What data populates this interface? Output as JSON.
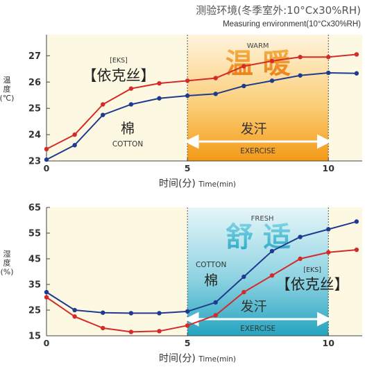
{
  "header": {
    "title": "测验环境(冬季室外:10°Cx30%RH)",
    "subtitle": "Measuring environment(10°Cx30%RH)"
  },
  "chart_data": [
    {
      "type": "line",
      "ylabel": "温度(℃)",
      "xlabel": "时间(分)",
      "xlabel_en": "Time(min)",
      "xlim": [
        0,
        11.2
      ],
      "ylim": [
        23,
        27.8
      ],
      "x_ticks": [
        "0",
        "5",
        "10"
      ],
      "y_ticks": [
        "23",
        "24",
        "25",
        "26",
        "27"
      ],
      "phase_marks": [
        5,
        10
      ],
      "phase_label_cn": "温 暖",
      "phase_label_en": "WARM",
      "exercise_cn": "发汗",
      "exercise_en": "EXERCISE",
      "series": [
        {
          "label_cn": "【依克丝】",
          "label_en": "[EKS]",
          "color": "#d42a2a",
          "x": [
            0,
            1,
            2,
            3,
            4,
            5,
            6,
            7,
            8,
            9,
            10,
            11
          ],
          "y": [
            23.45,
            24.0,
            25.15,
            25.75,
            25.95,
            26.05,
            26.15,
            26.6,
            26.8,
            26.95,
            26.95,
            27.05
          ]
        },
        {
          "label_cn": "棉",
          "label_en": "COTTON",
          "color": "#1f3b8f",
          "x": [
            0,
            1,
            2,
            3,
            4,
            5,
            6,
            7,
            8,
            9,
            10,
            11
          ],
          "y": [
            23.05,
            23.6,
            24.75,
            25.15,
            25.38,
            25.48,
            25.55,
            25.85,
            26.05,
            26.25,
            26.35,
            26.33
          ]
        }
      ]
    },
    {
      "type": "line",
      "ylabel": "湿度(%)",
      "xlabel": "时间(分)",
      "xlabel_en": "Time(min)",
      "xlim": [
        0,
        11.2
      ],
      "ylim": [
        15,
        65
      ],
      "x_ticks": [
        "0",
        "5",
        "10"
      ],
      "y_ticks": [
        "15",
        "25",
        "35",
        "45",
        "55",
        "65"
      ],
      "phase_marks": [
        5,
        10
      ],
      "phase_label_cn": "舒 适",
      "phase_label_en": "FRESH",
      "exercise_cn": "发汗",
      "exercise_en": "EXERCISE",
      "series": [
        {
          "label_cn": "【依克丝】",
          "label_en": "[EKS]",
          "color": "#d42a2a",
          "x": [
            0,
            1,
            2,
            3,
            4,
            5,
            6,
            7,
            8,
            9,
            10,
            11
          ],
          "y": [
            30,
            22.5,
            18,
            16.5,
            16.8,
            19,
            23,
            32,
            38.5,
            45,
            47.5,
            48.5
          ]
        },
        {
          "label_cn": "棉",
          "label_en": "COTTON",
          "color": "#1f3b8f",
          "x": [
            0,
            1,
            2,
            3,
            4,
            5,
            6,
            7,
            8,
            9,
            10,
            11
          ],
          "y": [
            32,
            25,
            24,
            23.8,
            23.8,
            24.5,
            28,
            38,
            48,
            53.5,
            56.5,
            59.5
          ]
        }
      ]
    }
  ]
}
